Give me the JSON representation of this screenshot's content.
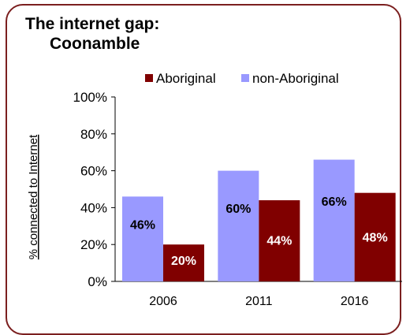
{
  "chart_data": {
    "type": "bar",
    "title": "The internet gap:",
    "subtitle": "Coonamble",
    "ylabel": "% connected to Internet",
    "xlabel": "",
    "categories": [
      "2006",
      "2011",
      "2016"
    ],
    "series": [
      {
        "name": "non-Aboriginal",
        "values": [
          46,
          60,
          66
        ],
        "labels": [
          "46%",
          "60%",
          "66%"
        ],
        "color": "#9999ff",
        "label_color": "#000000"
      },
      {
        "name": "Aboriginal",
        "values": [
          20,
          44,
          48
        ],
        "labels": [
          "20%",
          "44%",
          "48%"
        ],
        "color": "#800000",
        "label_color": "#ffffff"
      }
    ],
    "legend_order": [
      "Aboriginal",
      "non-Aboriginal"
    ],
    "ylim": [
      0,
      100
    ],
    "yticks": [
      0,
      20,
      40,
      60,
      80,
      100
    ],
    "ytick_labels": [
      "0%",
      "20%",
      "40%",
      "60%",
      "80%",
      "100%"
    ],
    "grid": false,
    "legend_position": "top",
    "frame_color": "#7b1f1f"
  }
}
